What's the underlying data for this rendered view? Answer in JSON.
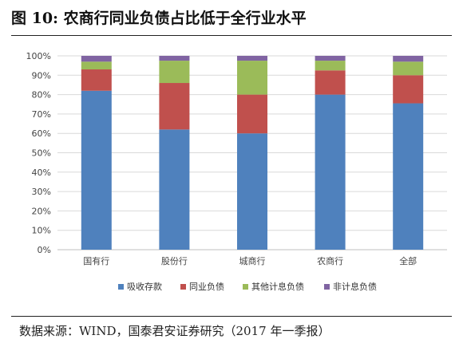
{
  "figure": {
    "title": "图 10:  农商行同业负债占比低于全行业水平",
    "source": "数据来源：WIND，国泰君安证券研究（2017 年一季报）"
  },
  "chart_data": {
    "type": "bar",
    "stacked": true,
    "categories": [
      "国有行",
      "股份行",
      "城商行",
      "农商行",
      "全部"
    ],
    "series": [
      {
        "name": "吸收存款",
        "color": "#4f81bd",
        "values": [
          82,
          62,
          60,
          80,
          75.5
        ]
      },
      {
        "name": "同业负债",
        "color": "#c0504d",
        "values": [
          11,
          24,
          20,
          12.5,
          14.5
        ]
      },
      {
        "name": "其他计息负债",
        "color": "#9bbb59",
        "values": [
          4,
          11.5,
          17.5,
          5,
          7
        ]
      },
      {
        "name": "非计息负债",
        "color": "#8064a2",
        "values": [
          3,
          2.5,
          2.5,
          2.5,
          3
        ]
      }
    ],
    "yticks": [
      "0%",
      "10%",
      "20%",
      "30%",
      "40%",
      "50%",
      "60%",
      "70%",
      "80%",
      "90%",
      "100%"
    ],
    "ylim": [
      0,
      100
    ],
    "grid": true,
    "legend": "bottom"
  }
}
